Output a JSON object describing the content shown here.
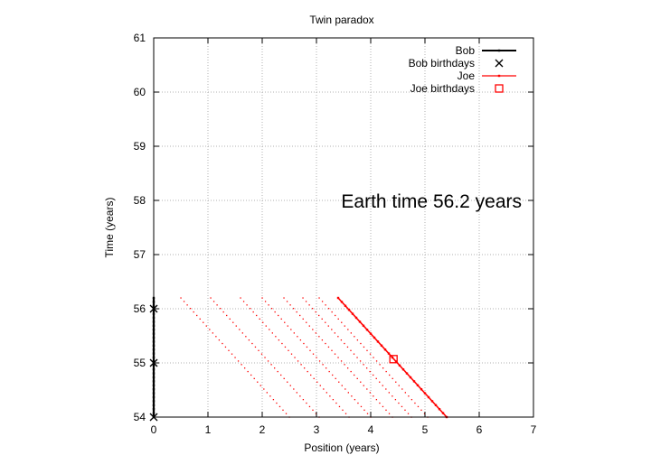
{
  "chart_data": {
    "type": "scatter",
    "title": "Twin paradox",
    "xlabel": "Position (years)",
    "ylabel": "Time (years)",
    "xlim": [
      0,
      7
    ],
    "ylim": [
      54,
      61
    ],
    "x_ticks": [
      "0",
      "1",
      "2",
      "3",
      "4",
      "5",
      "6",
      "7"
    ],
    "y_ticks": [
      "54",
      "55",
      "56",
      "57",
      "58",
      "59",
      "60",
      "61"
    ],
    "grid": true,
    "legend_position": "top-right",
    "annotation": "Earth time 56.2 years",
    "series": [
      {
        "name": "Bob",
        "style": "line",
        "color": "#000000",
        "points": [
          [
            0,
            54.0
          ],
          [
            0,
            56.2
          ]
        ]
      },
      {
        "name": "Bob birthdays",
        "style": "cross",
        "color": "#000000",
        "points": [
          [
            0,
            54
          ],
          [
            0,
            55
          ],
          [
            0,
            56
          ]
        ]
      },
      {
        "name": "Joe",
        "style": "line",
        "color": "#ff0000",
        "points": [
          [
            3.4,
            56.2
          ],
          [
            5.4,
            54.0
          ]
        ]
      },
      {
        "name": "Joe birthdays",
        "style": "square",
        "color": "#ff0000",
        "points": [
          [
            4.42,
            55.07
          ]
        ]
      }
    ],
    "trail_lines": [
      {
        "x_top": 0.5,
        "x_bottom": 2.5
      },
      {
        "x_top": 1.05,
        "x_bottom": 3.05
      },
      {
        "x_top": 1.6,
        "x_bottom": 3.6
      },
      {
        "x_top": 2.0,
        "x_bottom": 4.0
      },
      {
        "x_top": 2.4,
        "x_bottom": 4.4
      },
      {
        "x_top": 2.75,
        "x_bottom": 4.75
      },
      {
        "x_top": 3.05,
        "x_bottom": 5.05
      }
    ],
    "trail_y_range": [
      54.0,
      56.2
    ]
  }
}
